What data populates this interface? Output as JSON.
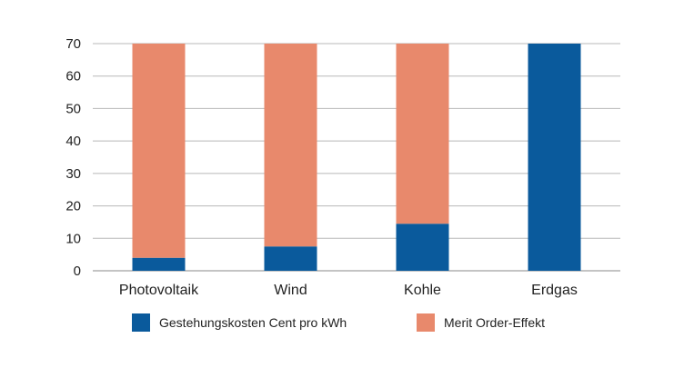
{
  "chart_data": {
    "type": "bar",
    "stacked": true,
    "categories": [
      "Photovoltaik",
      "Wind",
      "Kohle",
      "Erdgas"
    ],
    "series": [
      {
        "name": "Gestehungskosten Cent pro kWh",
        "values": [
          4,
          7.5,
          14.5,
          70
        ],
        "color": "#0a5a9c"
      },
      {
        "name": "Merit Order-Effekt",
        "values": [
          66,
          62.5,
          55.5,
          0
        ],
        "color": "#e8896c"
      }
    ],
    "yticks": [
      0,
      10,
      20,
      30,
      40,
      50,
      60,
      70
    ],
    "ylim": [
      0,
      70
    ],
    "grid": true,
    "legend_position": "bottom",
    "title": "",
    "xlabel": "",
    "ylabel": ""
  }
}
